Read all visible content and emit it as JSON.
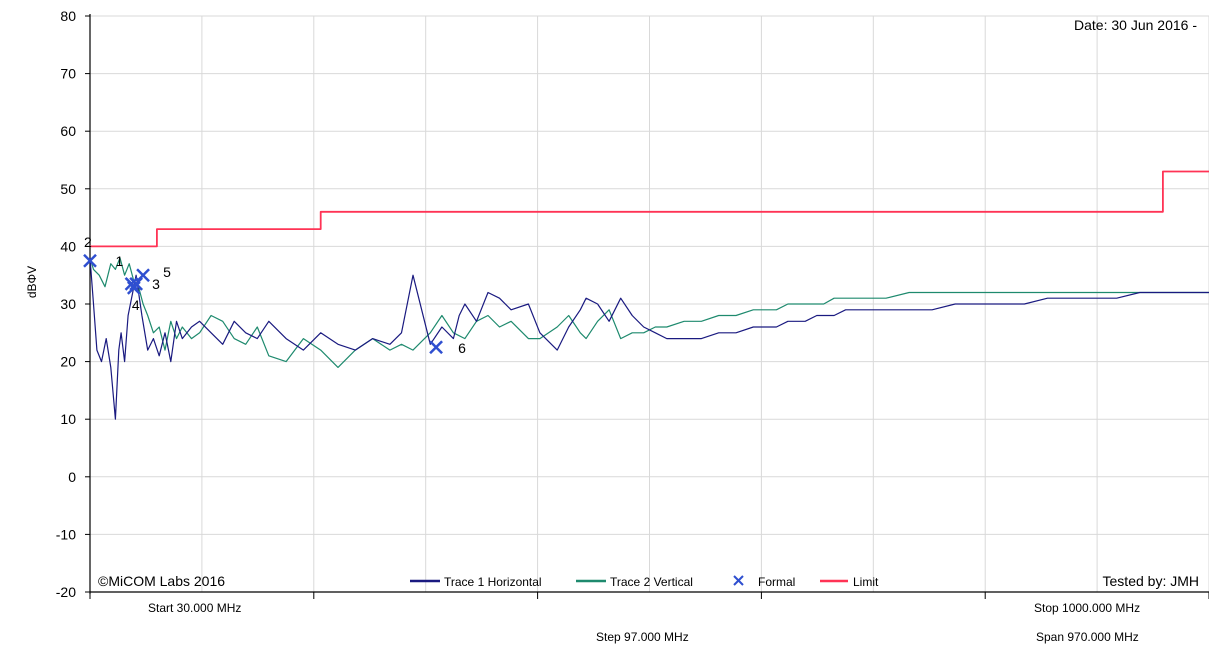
{
  "chart_data": {
    "type": "line",
    "ylabel": "dBΦV",
    "ylim": [
      -20,
      80
    ],
    "yticks": [
      80,
      70,
      60,
      50,
      40,
      30,
      20,
      10,
      0,
      -10,
      -20
    ],
    "xlim": [
      30,
      1000
    ],
    "xscale": "linear",
    "grid": true,
    "date_label": "Date: 30 Jun 2016 -",
    "copyright": "©MiCOM Labs 2016",
    "tested_by": "Tested by: JMH",
    "start_label": "Start 30.000 MHz",
    "stop_label": "Stop 1000.000 MHz",
    "step_label": "Step 97.000 MHz",
    "span_label": "Span 970.000 MHz",
    "legend": [
      {
        "name": "Trace 1 Horizontal",
        "color": "#1a1a80",
        "kind": "line"
      },
      {
        "name": "Trace 2 Vertical",
        "color": "#1e8a6e",
        "kind": "line"
      },
      {
        "name": "Formal",
        "color": "#2f4fd0",
        "kind": "marker"
      },
      {
        "name": "Limit",
        "color": "#ff3355",
        "kind": "line"
      }
    ],
    "series": [
      {
        "name": "Trace 1 Horizontal",
        "color": "#1a1a80",
        "x": [
          30,
          33,
          36,
          40,
          44,
          48,
          52,
          55,
          57,
          60,
          63,
          67,
          70,
          75,
          80,
          85,
          90,
          95,
          100,
          105,
          110,
          118,
          125,
          135,
          145,
          155,
          165,
          175,
          185,
          200,
          215,
          230,
          245,
          260,
          275,
          290,
          300,
          310,
          325,
          335,
          345,
          350,
          355,
          365,
          375,
          385,
          395,
          410,
          420,
          435,
          445,
          455,
          460,
          470,
          480,
          490,
          500,
          510,
          520,
          530,
          545,
          560,
          575,
          590,
          605,
          615,
          625,
          635,
          650,
          660,
          666,
          670,
          675,
          685,
          700,
          720,
          740,
          760,
          780,
          800,
          820,
          840,
          860,
          880,
          900,
          920,
          940,
          960,
          980,
          1000
        ],
        "y": [
          38,
          30,
          22,
          20,
          24,
          19,
          10,
          22,
          25,
          20,
          28,
          32,
          35,
          28,
          22,
          24,
          21,
          25,
          20,
          27,
          24,
          26,
          27,
          25,
          23,
          27,
          25,
          24,
          27,
          24,
          22,
          25,
          23,
          22,
          24,
          23,
          25,
          35,
          23,
          26,
          24,
          28,
          30,
          27,
          32,
          31,
          29,
          30,
          25,
          22,
          26,
          29,
          31,
          30,
          27,
          31,
          28,
          26,
          25,
          24,
          24,
          24,
          25,
          25,
          26,
          26,
          26,
          27,
          27,
          28,
          28,
          28,
          28,
          29,
          29,
          29,
          29,
          29,
          30,
          30,
          30,
          30,
          31,
          31,
          31,
          31,
          32,
          32,
          32,
          32
        ]
      },
      {
        "name": "Trace 2 Vertical",
        "color": "#1e8a6e",
        "x": [
          30,
          33,
          38,
          43,
          48,
          52,
          56,
          60,
          64,
          68,
          72,
          76,
          80,
          85,
          90,
          95,
          100,
          105,
          110,
          118,
          125,
          135,
          145,
          155,
          165,
          175,
          185,
          200,
          215,
          230,
          245,
          260,
          275,
          290,
          300,
          310,
          325,
          335,
          345,
          355,
          365,
          375,
          385,
          395,
          410,
          420,
          435,
          445,
          455,
          460,
          470,
          480,
          490,
          500,
          510,
          520,
          530,
          545,
          560,
          575,
          590,
          605,
          615,
          625,
          635,
          650,
          666,
          675,
          685,
          700,
          720,
          740,
          760,
          780,
          800,
          820,
          840,
          860,
          880,
          900,
          920,
          940,
          960,
          980,
          1000
        ],
        "y": [
          38,
          36,
          35,
          33,
          37,
          36,
          38,
          35,
          37,
          34,
          33,
          30,
          28,
          25,
          26,
          22,
          27,
          24,
          26,
          24,
          25,
          28,
          27,
          24,
          23,
          26,
          21,
          20,
          24,
          22,
          19,
          22,
          24,
          22,
          23,
          22,
          25,
          28,
          25,
          24,
          27,
          28,
          26,
          27,
          24,
          24,
          26,
          28,
          25,
          24,
          27,
          29,
          24,
          25,
          25,
          26,
          26,
          27,
          27,
          28,
          28,
          29,
          29,
          29,
          30,
          30,
          30,
          31,
          31,
          31,
          31,
          32,
          32,
          32,
          32,
          32,
          32,
          32,
          32,
          32,
          32,
          32,
          32,
          32,
          32
        ]
      },
      {
        "name": "Limit",
        "color": "#ff3355",
        "x": [
          30,
          88,
          88,
          230,
          230,
          960,
          960,
          1000
        ],
        "y": [
          40,
          40,
          43,
          43,
          46,
          46,
          53,
          53
        ]
      }
    ],
    "markers": [
      {
        "label": "2",
        "x": 30,
        "y": 37.5
      },
      {
        "label": "1",
        "x": 66,
        "y": 33.5
      },
      {
        "label": "4",
        "x": 68,
        "y": 32.8
      },
      {
        "label": "3",
        "x": 70,
        "y": 33.5
      },
      {
        "label": "5",
        "x": 76,
        "y": 35
      },
      {
        "label": "6",
        "x": 330,
        "y": 22.5
      }
    ]
  }
}
